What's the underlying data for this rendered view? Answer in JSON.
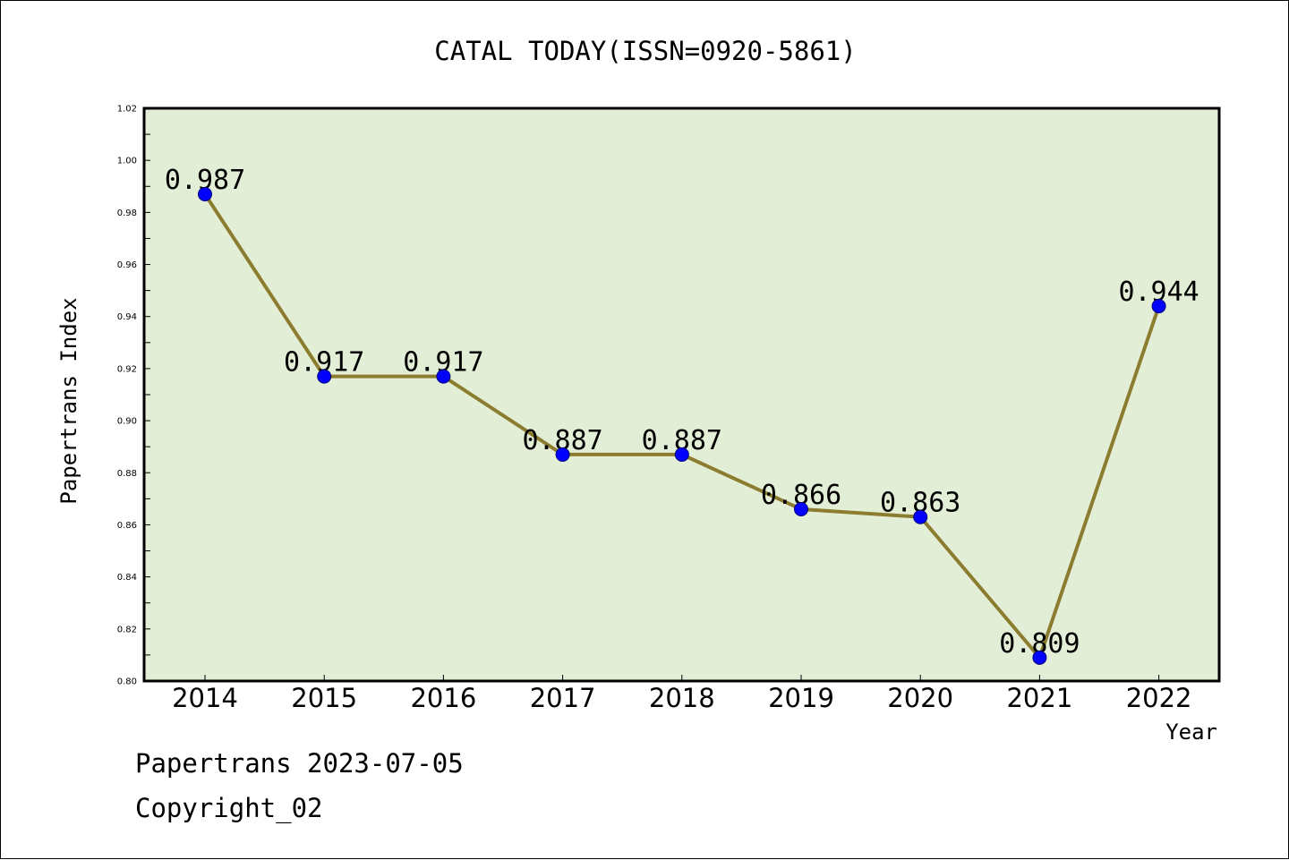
{
  "chart_data": {
    "type": "line",
    "title": "CATAL TODAY(ISSN=0920-5861)",
    "xlabel": "Year",
    "ylabel": "Papertrans Index",
    "categories": [
      "2014",
      "2015",
      "2016",
      "2017",
      "2018",
      "2019",
      "2020",
      "2021",
      "2022"
    ],
    "values": [
      0.987,
      0.917,
      0.917,
      0.887,
      0.887,
      0.866,
      0.863,
      0.809,
      0.944
    ],
    "data_labels": [
      "0.987",
      "0.917",
      "0.917",
      "0.887",
      "0.887",
      "0.866",
      "0.863",
      "0.809",
      "0.944"
    ],
    "ylim": [
      0.8,
      1.02
    ],
    "yticks": [
      "0.80",
      "0.82",
      "0.84",
      "0.86",
      "0.88",
      "0.90",
      "0.92",
      "0.94",
      "0.96",
      "0.98",
      "1.00",
      "1.02"
    ],
    "grid": false,
    "colors": {
      "plot_background": "#e2efd6",
      "line": "#8c7c30",
      "marker": "#0000ff"
    }
  },
  "footer": {
    "date_line": "Papertrans 2023-07-05",
    "copyright": "Copyright_02"
  }
}
